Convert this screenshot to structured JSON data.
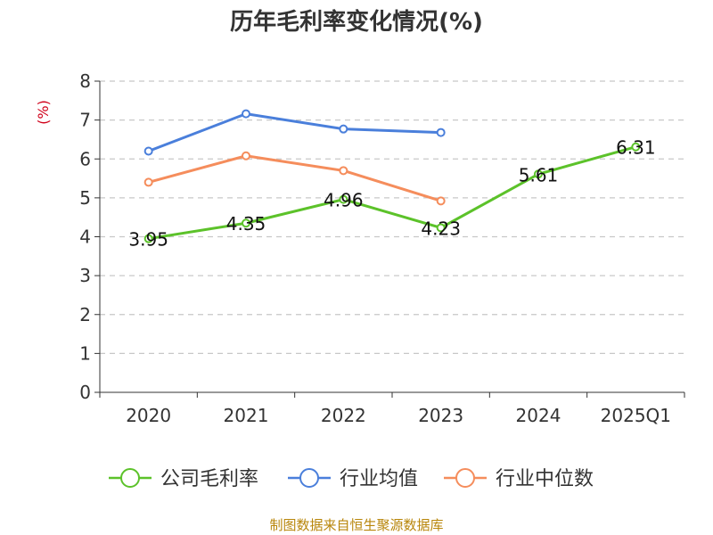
{
  "chart_data": {
    "type": "line",
    "title": "历年毛利率变化情况(%)",
    "ylabel": "(%)",
    "categories": [
      "2020",
      "2021",
      "2022",
      "2023",
      "2024",
      "2025Q1"
    ],
    "ylim": [
      0,
      8
    ],
    "yticks": [
      "0",
      "1",
      "2",
      "3",
      "4",
      "5",
      "6",
      "7",
      "8"
    ],
    "grid": true,
    "legend_position": "bottom",
    "series": [
      {
        "name": "公司毛利率",
        "color": "#5cc22a",
        "values": [
          3.95,
          4.35,
          4.96,
          4.23,
          5.61,
          6.31
        ],
        "labels": [
          "3.95",
          "4.35",
          "4.96",
          "4.23",
          "5.61",
          "6.31"
        ]
      },
      {
        "name": "行业均值",
        "color": "#4a7fdb",
        "values": [
          6.2,
          7.16,
          6.77,
          6.68,
          null,
          null
        ]
      },
      {
        "name": "行业中位数",
        "color": "#f58d5c",
        "values": [
          5.4,
          6.08,
          5.7,
          4.92,
          null,
          null
        ]
      }
    ]
  },
  "footer": {
    "source": "制图数据来自恒生聚源数据库"
  }
}
